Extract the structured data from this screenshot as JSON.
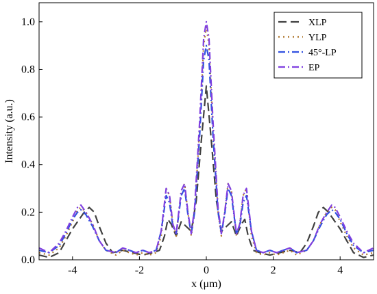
{
  "chart_data": {
    "type": "line",
    "xlabel": "x (μm)",
    "ylabel": "Intensity (a.u.)",
    "xlim": [
      -5,
      5
    ],
    "ylim": [
      0,
      1.08
    ],
    "x_ticks": [
      -4,
      -2,
      0,
      2,
      4
    ],
    "x_tick_labels": [
      "-4",
      "-2",
      "0",
      "2",
      "4"
    ],
    "y_ticks": [
      0.0,
      0.2,
      0.4,
      0.6,
      0.8,
      1.0
    ],
    "y_tick_labels": [
      "0.0",
      "0.2",
      "0.4",
      "0.6",
      "0.8",
      "1.0"
    ],
    "grid": false,
    "legend_position": "top-right",
    "series": [
      {
        "name": "XLP",
        "color": "#404040",
        "dash": "dashed",
        "points": [
          [
            -5,
            0.02
          ],
          [
            -4.7,
            0.01
          ],
          [
            -4.4,
            0.03
          ],
          [
            -4.2,
            0.08
          ],
          [
            -4.0,
            0.13
          ],
          [
            -3.8,
            0.17
          ],
          [
            -3.65,
            0.2
          ],
          [
            -3.5,
            0.22
          ],
          [
            -3.35,
            0.2
          ],
          [
            -3.2,
            0.14
          ],
          [
            -3.0,
            0.07
          ],
          [
            -2.8,
            0.03
          ],
          [
            -2.5,
            0.04
          ],
          [
            -2.2,
            0.03
          ],
          [
            -1.9,
            0.02
          ],
          [
            -1.6,
            0.03
          ],
          [
            -1.4,
            0.04
          ],
          [
            -1.25,
            0.1
          ],
          [
            -1.15,
            0.17
          ],
          [
            -1.05,
            0.15
          ],
          [
            -0.9,
            0.1
          ],
          [
            -0.75,
            0.16
          ],
          [
            -0.6,
            0.14
          ],
          [
            -0.45,
            0.12
          ],
          [
            -0.3,
            0.25
          ],
          [
            -0.15,
            0.5
          ],
          [
            0.0,
            0.73
          ],
          [
            0.15,
            0.5
          ],
          [
            0.3,
            0.25
          ],
          [
            0.45,
            0.12
          ],
          [
            0.6,
            0.14
          ],
          [
            0.75,
            0.16
          ],
          [
            0.9,
            0.1
          ],
          [
            1.05,
            0.15
          ],
          [
            1.15,
            0.17
          ],
          [
            1.25,
            0.1
          ],
          [
            1.4,
            0.04
          ],
          [
            1.6,
            0.03
          ],
          [
            1.9,
            0.02
          ],
          [
            2.2,
            0.03
          ],
          [
            2.5,
            0.04
          ],
          [
            2.8,
            0.03
          ],
          [
            3.0,
            0.07
          ],
          [
            3.2,
            0.14
          ],
          [
            3.35,
            0.2
          ],
          [
            3.5,
            0.22
          ],
          [
            3.65,
            0.2
          ],
          [
            3.8,
            0.17
          ],
          [
            4.0,
            0.13
          ],
          [
            4.2,
            0.08
          ],
          [
            4.4,
            0.03
          ],
          [
            4.7,
            0.01
          ],
          [
            5.0,
            0.02
          ]
        ]
      },
      {
        "name": "YLP",
        "color": "#b07830",
        "dash": "dotted",
        "points": [
          [
            -5,
            0.03
          ],
          [
            -4.7,
            0.02
          ],
          [
            -4.4,
            0.05
          ],
          [
            -4.2,
            0.1
          ],
          [
            -4.0,
            0.16
          ],
          [
            -3.85,
            0.21
          ],
          [
            -3.75,
            0.22
          ],
          [
            -3.6,
            0.2
          ],
          [
            -3.4,
            0.15
          ],
          [
            -3.2,
            0.08
          ],
          [
            -3.0,
            0.04
          ],
          [
            -2.7,
            0.02
          ],
          [
            -2.5,
            0.04
          ],
          [
            -2.3,
            0.03
          ],
          [
            -2.1,
            0.02
          ],
          [
            -1.9,
            0.03
          ],
          [
            -1.7,
            0.02
          ],
          [
            -1.5,
            0.03
          ],
          [
            -1.35,
            0.1
          ],
          [
            -1.2,
            0.3
          ],
          [
            -1.1,
            0.27
          ],
          [
            -1.0,
            0.15
          ],
          [
            -0.9,
            0.1
          ],
          [
            -0.75,
            0.29
          ],
          [
            -0.65,
            0.32
          ],
          [
            -0.55,
            0.2
          ],
          [
            -0.45,
            0.1
          ],
          [
            -0.35,
            0.2
          ],
          [
            -0.2,
            0.55
          ],
          [
            -0.08,
            0.9
          ],
          [
            0.0,
            0.98
          ],
          [
            0.08,
            0.9
          ],
          [
            0.2,
            0.55
          ],
          [
            0.35,
            0.2
          ],
          [
            0.45,
            0.1
          ],
          [
            0.55,
            0.2
          ],
          [
            0.65,
            0.32
          ],
          [
            0.75,
            0.29
          ],
          [
            0.9,
            0.1
          ],
          [
            1.0,
            0.15
          ],
          [
            1.1,
            0.27
          ],
          [
            1.2,
            0.3
          ],
          [
            1.35,
            0.1
          ],
          [
            1.5,
            0.03
          ],
          [
            1.7,
            0.02
          ],
          [
            1.9,
            0.03
          ],
          [
            2.1,
            0.02
          ],
          [
            2.3,
            0.03
          ],
          [
            2.5,
            0.04
          ],
          [
            2.7,
            0.02
          ],
          [
            3.0,
            0.04
          ],
          [
            3.2,
            0.08
          ],
          [
            3.4,
            0.15
          ],
          [
            3.6,
            0.2
          ],
          [
            3.75,
            0.22
          ],
          [
            3.85,
            0.21
          ],
          [
            4.0,
            0.16
          ],
          [
            4.2,
            0.1
          ],
          [
            4.4,
            0.05
          ],
          [
            4.7,
            0.02
          ],
          [
            5.0,
            0.03
          ]
        ]
      },
      {
        "name": "45°-LP",
        "color": "#3050e0",
        "dash": "dashdot",
        "points": [
          [
            -5,
            0.04
          ],
          [
            -4.7,
            0.03
          ],
          [
            -4.4,
            0.06
          ],
          [
            -4.2,
            0.11
          ],
          [
            -4.0,
            0.17
          ],
          [
            -3.85,
            0.2
          ],
          [
            -3.75,
            0.21
          ],
          [
            -3.6,
            0.19
          ],
          [
            -3.4,
            0.14
          ],
          [
            -3.2,
            0.08
          ],
          [
            -3.0,
            0.04
          ],
          [
            -2.7,
            0.03
          ],
          [
            -2.5,
            0.05
          ],
          [
            -2.3,
            0.04
          ],
          [
            -2.1,
            0.03
          ],
          [
            -1.9,
            0.04
          ],
          [
            -1.7,
            0.03
          ],
          [
            -1.5,
            0.04
          ],
          [
            -1.35,
            0.12
          ],
          [
            -1.2,
            0.27
          ],
          [
            -1.1,
            0.24
          ],
          [
            -1.0,
            0.14
          ],
          [
            -0.9,
            0.11
          ],
          [
            -0.75,
            0.27
          ],
          [
            -0.65,
            0.3
          ],
          [
            -0.55,
            0.19
          ],
          [
            -0.45,
            0.11
          ],
          [
            -0.35,
            0.2
          ],
          [
            -0.2,
            0.52
          ],
          [
            -0.08,
            0.84
          ],
          [
            0.0,
            0.9
          ],
          [
            0.08,
            0.84
          ],
          [
            0.2,
            0.52
          ],
          [
            0.35,
            0.2
          ],
          [
            0.45,
            0.11
          ],
          [
            0.55,
            0.19
          ],
          [
            0.65,
            0.3
          ],
          [
            0.75,
            0.27
          ],
          [
            0.9,
            0.11
          ],
          [
            1.0,
            0.14
          ],
          [
            1.1,
            0.24
          ],
          [
            1.2,
            0.27
          ],
          [
            1.35,
            0.12
          ],
          [
            1.5,
            0.04
          ],
          [
            1.7,
            0.03
          ],
          [
            1.9,
            0.04
          ],
          [
            2.1,
            0.03
          ],
          [
            2.3,
            0.04
          ],
          [
            2.5,
            0.05
          ],
          [
            2.7,
            0.03
          ],
          [
            3.0,
            0.04
          ],
          [
            3.2,
            0.08
          ],
          [
            3.4,
            0.14
          ],
          [
            3.6,
            0.19
          ],
          [
            3.75,
            0.21
          ],
          [
            3.85,
            0.2
          ],
          [
            4.0,
            0.17
          ],
          [
            4.2,
            0.11
          ],
          [
            4.4,
            0.06
          ],
          [
            4.7,
            0.03
          ],
          [
            5.0,
            0.04
          ]
        ]
      },
      {
        "name": "EP",
        "color": "#8040e0",
        "dash": "dashdot",
        "points": [
          [
            -5,
            0.05
          ],
          [
            -4.7,
            0.03
          ],
          [
            -4.4,
            0.07
          ],
          [
            -4.2,
            0.12
          ],
          [
            -4.0,
            0.18
          ],
          [
            -3.85,
            0.22
          ],
          [
            -3.75,
            0.23
          ],
          [
            -3.6,
            0.2
          ],
          [
            -3.4,
            0.15
          ],
          [
            -3.2,
            0.08
          ],
          [
            -3.0,
            0.04
          ],
          [
            -2.7,
            0.03
          ],
          [
            -2.5,
            0.05
          ],
          [
            -2.3,
            0.04
          ],
          [
            -2.1,
            0.03
          ],
          [
            -1.9,
            0.04
          ],
          [
            -1.7,
            0.03
          ],
          [
            -1.5,
            0.04
          ],
          [
            -1.35,
            0.12
          ],
          [
            -1.2,
            0.3
          ],
          [
            -1.1,
            0.27
          ],
          [
            -1.0,
            0.15
          ],
          [
            -0.9,
            0.11
          ],
          [
            -0.75,
            0.29
          ],
          [
            -0.65,
            0.32
          ],
          [
            -0.55,
            0.2
          ],
          [
            -0.45,
            0.11
          ],
          [
            -0.35,
            0.22
          ],
          [
            -0.2,
            0.58
          ],
          [
            -0.08,
            0.93
          ],
          [
            0.0,
            1.0
          ],
          [
            0.08,
            0.93
          ],
          [
            0.2,
            0.58
          ],
          [
            0.35,
            0.22
          ],
          [
            0.45,
            0.11
          ],
          [
            0.55,
            0.2
          ],
          [
            0.65,
            0.32
          ],
          [
            0.75,
            0.29
          ],
          [
            0.9,
            0.11
          ],
          [
            1.0,
            0.15
          ],
          [
            1.1,
            0.27
          ],
          [
            1.2,
            0.3
          ],
          [
            1.35,
            0.12
          ],
          [
            1.5,
            0.04
          ],
          [
            1.7,
            0.03
          ],
          [
            1.9,
            0.04
          ],
          [
            2.1,
            0.03
          ],
          [
            2.3,
            0.04
          ],
          [
            2.5,
            0.05
          ],
          [
            2.7,
            0.03
          ],
          [
            3.0,
            0.04
          ],
          [
            3.2,
            0.08
          ],
          [
            3.4,
            0.15
          ],
          [
            3.6,
            0.2
          ],
          [
            3.75,
            0.23
          ],
          [
            3.85,
            0.22
          ],
          [
            4.0,
            0.18
          ],
          [
            4.2,
            0.12
          ],
          [
            4.4,
            0.07
          ],
          [
            4.7,
            0.03
          ],
          [
            5.0,
            0.05
          ]
        ]
      }
    ]
  }
}
